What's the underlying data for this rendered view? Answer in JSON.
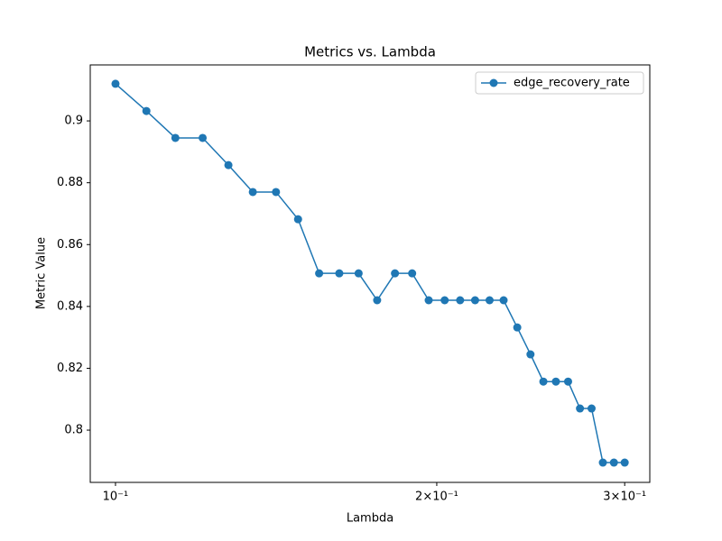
{
  "chart_data": {
    "type": "line",
    "title": "Metrics vs. Lambda",
    "xlabel": "Lambda",
    "ylabel": "Metric Value",
    "xscale": "log",
    "x": [
      0.1,
      0.106897,
      0.113793,
      0.12069,
      0.127586,
      0.134483,
      0.141379,
      0.148276,
      0.155172,
      0.162069,
      0.168966,
      0.175862,
      0.182759,
      0.189655,
      0.196552,
      0.203448,
      0.210345,
      0.217241,
      0.224138,
      0.231034,
      0.237931,
      0.244828,
      0.251724,
      0.258621,
      0.265517,
      0.272414,
      0.27931,
      0.286207,
      0.293103,
      0.3
    ],
    "series": [
      {
        "name": "edge_recovery_rate",
        "color": "#1f77b4",
        "values": [
          0.912,
          0.9032,
          0.8945,
          0.8945,
          0.8857,
          0.877,
          0.877,
          0.8682,
          0.8507,
          0.8507,
          0.8507,
          0.842,
          0.8507,
          0.8507,
          0.842,
          0.842,
          0.842,
          0.842,
          0.842,
          0.842,
          0.8332,
          0.8245,
          0.8157,
          0.8157,
          0.8157,
          0.807,
          0.807,
          0.7895,
          0.7895,
          0.7895
        ]
      }
    ],
    "xlim": [
      0.0947,
      0.3167
    ],
    "ylim": [
      0.7831,
      0.9181
    ],
    "xticks": [
      {
        "value": 0.1,
        "label": "10⁻¹"
      },
      {
        "value": 0.2,
        "label": "2×10⁻¹"
      },
      {
        "value": 0.3,
        "label": "3×10⁻¹"
      }
    ],
    "yticks": [
      0.8,
      0.82,
      0.84,
      0.86,
      0.88,
      0.9
    ],
    "legend": "upper right",
    "grid": false
  }
}
